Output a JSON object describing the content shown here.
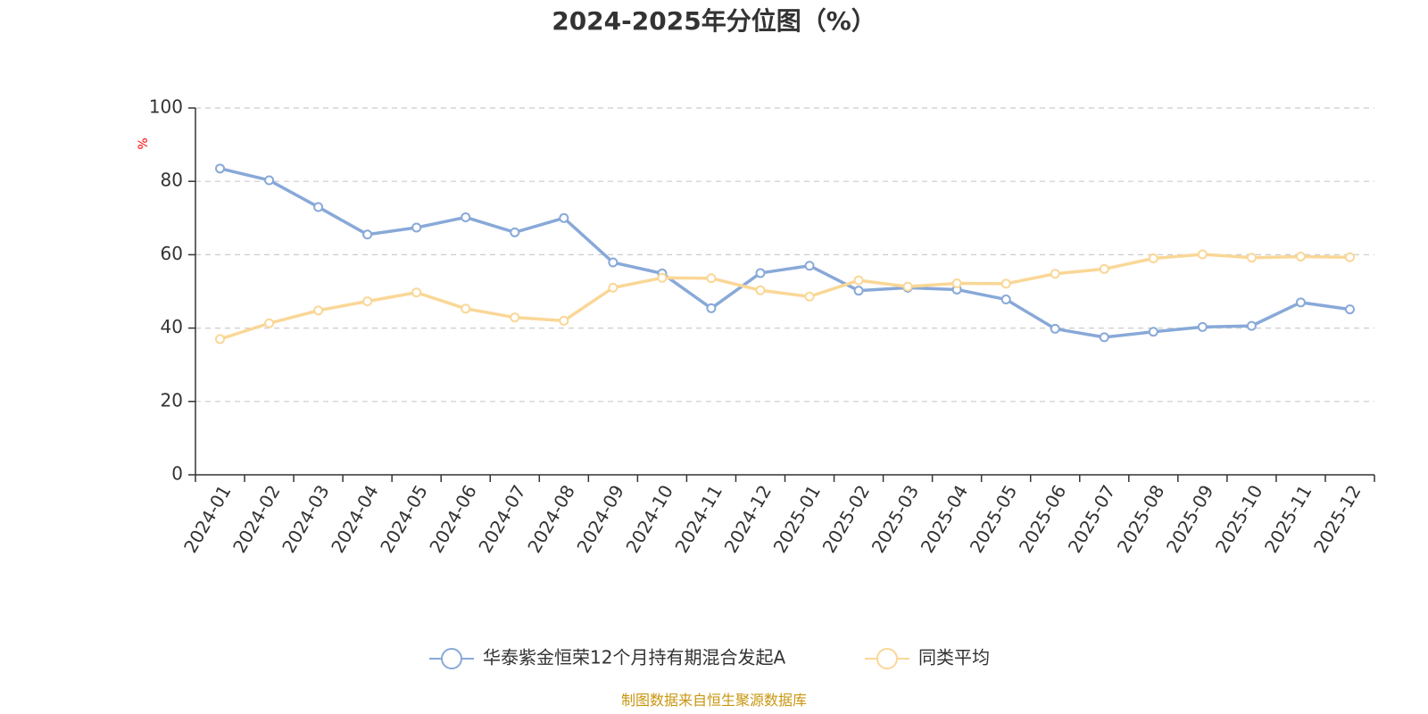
{
  "chart_data": {
    "type": "line",
    "title": "2024-2025年分位图（%）",
    "ylabel": "%",
    "ylim": [
      0,
      100
    ],
    "yticks": [
      0,
      20,
      40,
      60,
      80,
      100
    ],
    "grid": true,
    "legend_position": "bottom-center",
    "categories": [
      "2024-01",
      "2024-02",
      "2024-03",
      "2024-04",
      "2024-05",
      "2024-06",
      "2024-07",
      "2024-08",
      "2024-09",
      "2024-10",
      "2024-11",
      "2024-12",
      "2025-01",
      "2025-02",
      "2025-03",
      "2025-04",
      "2025-05",
      "2025-06",
      "2025-07",
      "2025-08",
      "2025-09",
      "2025-10",
      "2025-11",
      "2025-12"
    ],
    "series": [
      {
        "name": "华泰紫金恒荣12个月持有期混合发起A",
        "color": "#88a9d8",
        "values": [
          83.5,
          80.3,
          73.0,
          65.5,
          67.4,
          70.2,
          66.1,
          70.0,
          57.9,
          54.9,
          45.4,
          55.0,
          57.0,
          50.2,
          51.0,
          50.5,
          47.8,
          39.8,
          37.5,
          39.0,
          40.3,
          40.6,
          47.0,
          45.1
        ]
      },
      {
        "name": "同类平均",
        "color": "#fad797",
        "values": [
          37.0,
          41.3,
          44.8,
          47.3,
          49.7,
          45.3,
          42.9,
          42.0,
          51.0,
          53.7,
          53.6,
          50.3,
          48.6,
          53.0,
          51.3,
          52.2,
          52.1,
          54.8,
          56.1,
          59.0,
          60.1,
          59.2,
          59.5,
          59.3
        ]
      }
    ],
    "axis_color": "#333333",
    "grid_color": "#cccccc"
  },
  "source": {
    "text": "制图数据来自恒生聚源数据库",
    "color": "#c8960f"
  }
}
